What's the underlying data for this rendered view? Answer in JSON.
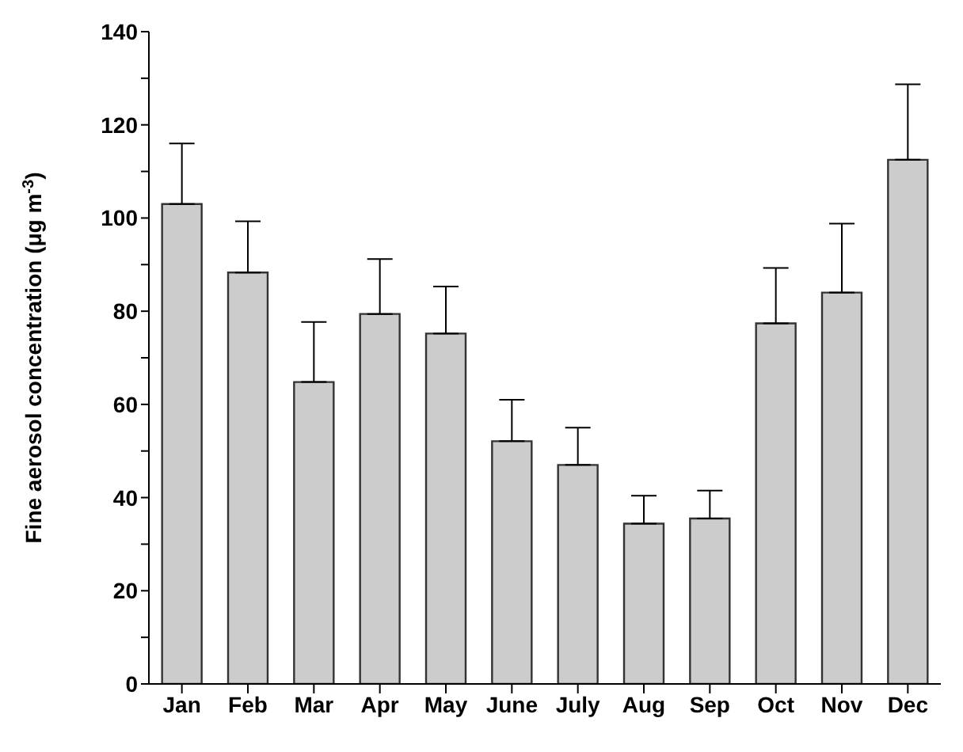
{
  "chart_data": {
    "type": "bar",
    "ylabel": "Fine aerosol concentration (μg m$^{-3}$)",
    "categories": [
      "Jan",
      "Feb",
      "Mar",
      "Apr",
      "May",
      "June",
      "July",
      "Aug",
      "Sep",
      "Oct",
      "Nov",
      "Dec"
    ],
    "values": [
      103,
      88.3,
      64.8,
      79.4,
      75.2,
      52.1,
      47,
      34.4,
      35.5,
      77.4,
      84,
      112.5
    ],
    "errors": [
      [
        103,
        116
      ],
      [
        88.3,
        99.3
      ],
      [
        64.8,
        77.7
      ],
      [
        79.4,
        91.2
      ],
      [
        75.2,
        85.3
      ],
      [
        52.1,
        61
      ],
      [
        47,
        55
      ],
      [
        34.4,
        40.4
      ],
      [
        35.5,
        41.5
      ],
      [
        77.4,
        89.3
      ],
      [
        84,
        98.8
      ],
      [
        112.5,
        128.7
      ]
    ],
    "color": "#cccccc",
    "ylim": [
      0,
      140
    ],
    "yticks": [
      0,
      {
        "value": 10,
        "label": null
      },
      20,
      {
        "value": 30,
        "label": null
      },
      40,
      {
        "value": 50,
        "label": null
      },
      60,
      {
        "value": 70,
        "label": null
      },
      80,
      {
        "value": 90,
        "label": null
      },
      100,
      {
        "value": 110,
        "label": null
      },
      120,
      {
        "value": 130,
        "label": null
      },
      140
    ],
    "grid": false,
    "legend": false
  }
}
